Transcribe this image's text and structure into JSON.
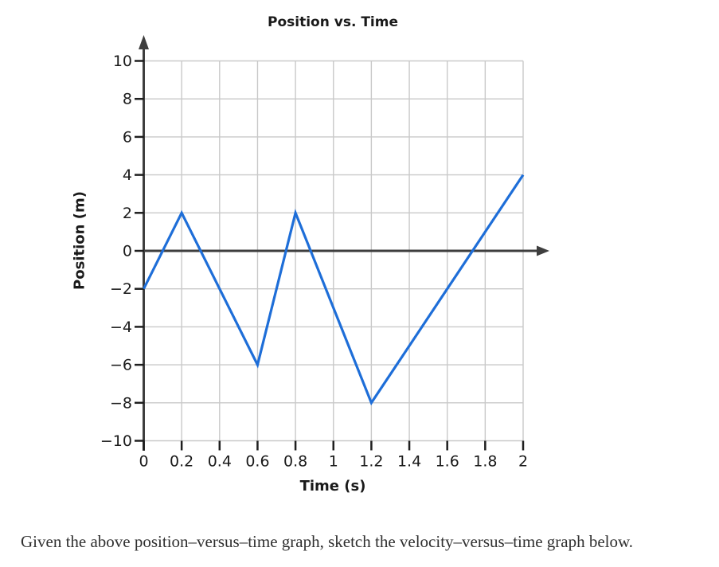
{
  "page": {
    "background": "#ffffff"
  },
  "chart_data": {
    "type": "line",
    "title": "Position vs. Time",
    "xlabel": "Time (s)",
    "ylabel": "Position (m)",
    "xlim": [
      0,
      2
    ],
    "ylim": [
      -10,
      10
    ],
    "grid": true,
    "legend": false,
    "xticks": {
      "values": [
        0,
        0.2,
        0.4,
        0.6,
        0.8,
        1,
        1.2,
        1.4,
        1.6,
        1.8,
        2
      ],
      "labels": [
        "0",
        "0.2",
        "0.4",
        "0.6",
        "0.8",
        "1",
        "1.2",
        "1.4",
        "1.6",
        "1.8",
        "2"
      ]
    },
    "yticks": {
      "values": [
        10,
        8,
        6,
        4,
        2,
        0,
        -2,
        -4,
        -6,
        -8,
        -10
      ],
      "labels": [
        "10",
        "8",
        "6",
        "4",
        "2",
        "0",
        "−2",
        "−4",
        "−6",
        "−8",
        "−10"
      ]
    },
    "series": [
      {
        "name": "position",
        "points": [
          [
            0,
            -2
          ],
          [
            0.2,
            2
          ],
          [
            0.6,
            -6
          ],
          [
            0.8,
            2
          ],
          [
            1.2,
            -8
          ],
          [
            2,
            4
          ]
        ]
      }
    ],
    "colors": {
      "line": "#1e6ed8",
      "axis": "#3e3e3e",
      "grid": "#c9c9c9",
      "tick": "#1f1f1f",
      "text": "#1a1a1a"
    }
  },
  "instruction": "Given the above position–versus–time graph, sketch the velocity–versus–time graph below."
}
